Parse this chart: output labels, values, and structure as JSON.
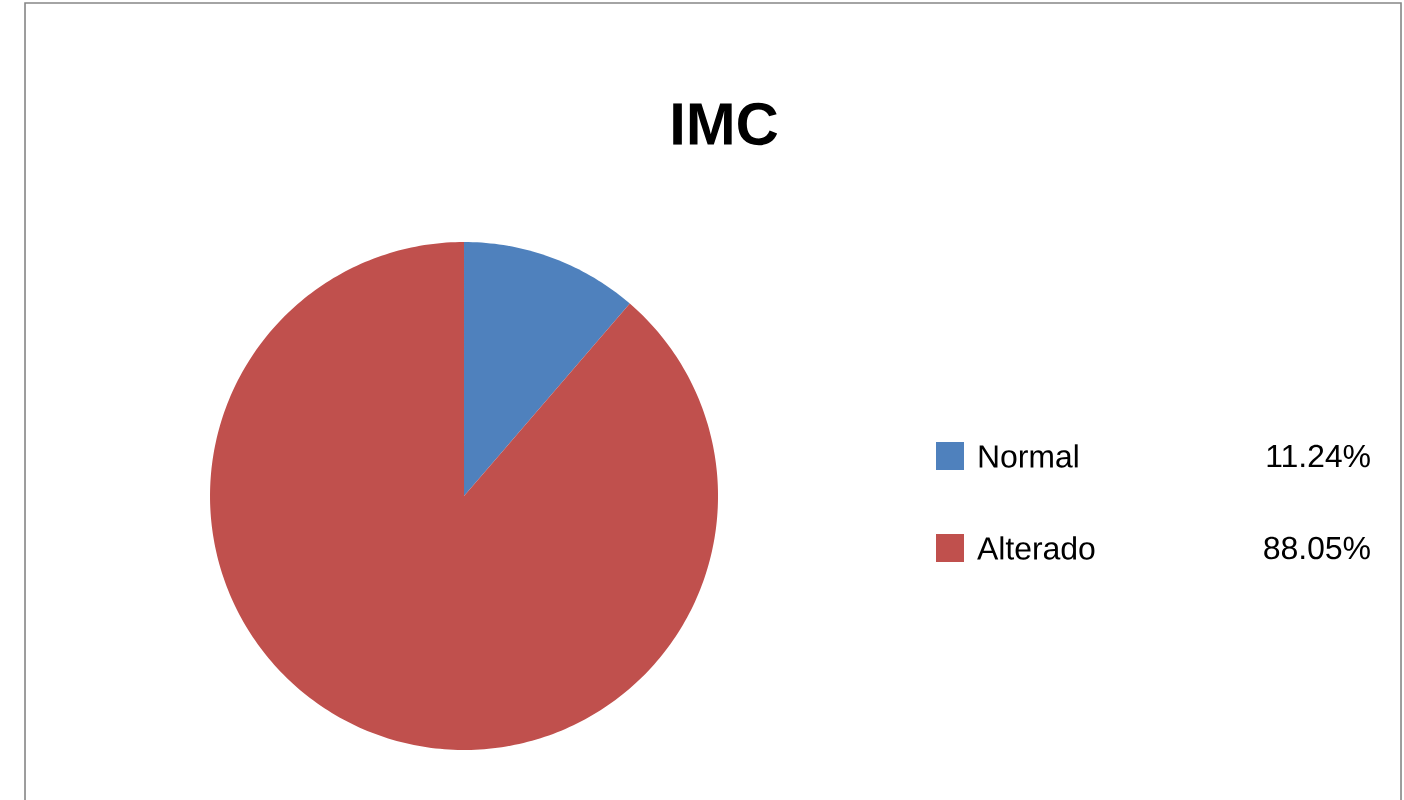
{
  "chart_data": {
    "type": "pie",
    "title": "IMC",
    "categories": [
      "Normal",
      "Alterado"
    ],
    "values": [
      11.24,
      88.05
    ],
    "value_labels": [
      "11.24%",
      "88.05%"
    ],
    "colors": [
      "#4f81bd",
      "#c0504d"
    ],
    "legend": "right"
  }
}
